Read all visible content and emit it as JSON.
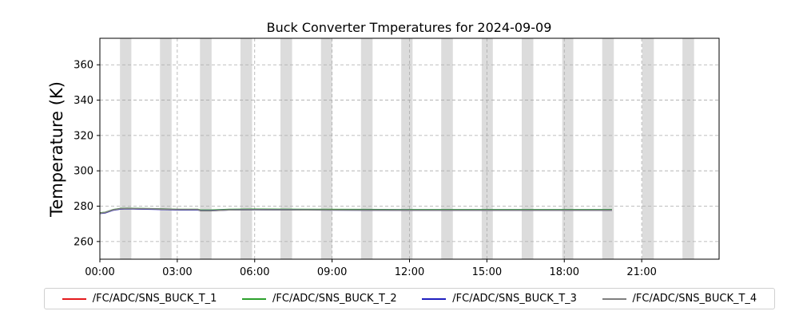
{
  "chart_data": {
    "type": "line",
    "title": "Buck Converter Tmperatures for 2024-09-09",
    "xlabel": "",
    "ylabel": "Temperature (K)",
    "xlim": [
      "00:00",
      "24:00"
    ],
    "ylim": [
      250,
      375
    ],
    "x_tick_labels": [
      "00:00",
      "03:00",
      "06:00",
      "09:00",
      "12:00",
      "15:00",
      "18:00",
      "21:00"
    ],
    "y_tick_labels": [
      "260",
      "280",
      "300",
      "320",
      "340",
      "360"
    ],
    "y_ticks": [
      260,
      280,
      300,
      320,
      340,
      360
    ],
    "x_ticks_hours": [
      0,
      3,
      6,
      9,
      12,
      15,
      18,
      21
    ],
    "grid": true,
    "legend_position": "below",
    "shaded_bands_hours": [
      [
        0.78,
        1.22
      ],
      [
        2.33,
        2.78
      ],
      [
        3.88,
        4.33
      ],
      [
        5.45,
        5.9
      ],
      [
        7.0,
        7.45
      ],
      [
        8.57,
        9.0
      ],
      [
        10.12,
        10.57
      ],
      [
        11.68,
        12.12
      ],
      [
        13.23,
        13.68
      ],
      [
        14.8,
        15.23
      ],
      [
        16.35,
        16.8
      ],
      [
        17.92,
        18.35
      ],
      [
        19.47,
        19.92
      ],
      [
        21.02,
        21.47
      ],
      [
        22.58,
        23.03
      ]
    ],
    "series": [
      {
        "name": "/FC/ADC/SNS_BUCK_T_1",
        "color": "#e41a1c",
        "x_hours": [
          0,
          0.2,
          0.5,
          0.8,
          1.1,
          1.5,
          2.0,
          2.5,
          3.0,
          3.8,
          3.9,
          4.3,
          5.0,
          6.0,
          8.0,
          10.0,
          12.0,
          14.0,
          16.0,
          18.0,
          19.85
        ],
        "values": [
          276.0,
          276.3,
          277.8,
          278.5,
          278.6,
          278.5,
          278.4,
          278.2,
          278.0,
          278.0,
          277.6,
          277.6,
          278.0,
          278.1,
          278.0,
          277.9,
          277.8,
          277.8,
          277.8,
          277.8,
          277.8
        ]
      },
      {
        "name": "/FC/ADC/SNS_BUCK_T_2",
        "color": "#2ca02c",
        "x_hours": [
          0,
          0.2,
          0.5,
          0.8,
          1.1,
          1.5,
          2.0,
          2.5,
          3.0,
          3.8,
          3.9,
          4.3,
          5.0,
          6.0,
          8.0,
          10.0,
          12.0,
          14.0,
          16.0,
          18.0,
          19.85
        ],
        "values": [
          276.2,
          276.5,
          278.0,
          278.7,
          278.8,
          278.7,
          278.6,
          278.4,
          278.2,
          278.2,
          277.8,
          277.8,
          278.2,
          278.3,
          278.2,
          278.1,
          278.0,
          278.0,
          278.0,
          278.0,
          278.0
        ]
      },
      {
        "name": "/FC/ADC/SNS_BUCK_T_3",
        "color": "#1f1fbf",
        "x_hours": [
          0,
          0.2,
          0.5,
          0.8,
          1.1,
          1.5,
          2.0,
          2.5,
          3.0,
          3.8,
          3.9,
          4.3,
          5.0,
          6.0,
          8.0,
          10.0,
          12.0,
          14.0,
          16.0,
          18.0,
          19.85
        ],
        "values": [
          275.9,
          276.2,
          277.7,
          278.4,
          278.5,
          278.4,
          278.3,
          278.1,
          277.9,
          277.9,
          277.5,
          277.5,
          277.9,
          278.0,
          277.9,
          277.8,
          277.7,
          277.7,
          277.7,
          277.7,
          277.7
        ]
      },
      {
        "name": "/FC/ADC/SNS_BUCK_T_4",
        "color": "#7f7f7f",
        "x_hours": [
          0,
          0.2,
          0.5,
          0.8,
          1.1,
          1.5,
          2.0,
          2.5,
          3.0,
          3.8,
          3.9,
          4.3,
          5.0,
          6.0,
          8.0,
          10.0,
          12.0,
          14.0,
          16.0,
          18.0,
          19.85
        ],
        "values": [
          276.0,
          276.4,
          277.9,
          278.6,
          278.7,
          278.6,
          278.5,
          278.3,
          278.1,
          278.1,
          277.4,
          277.4,
          277.9,
          278.0,
          277.9,
          277.8,
          277.7,
          277.7,
          277.7,
          277.7,
          277.7
        ]
      }
    ]
  }
}
